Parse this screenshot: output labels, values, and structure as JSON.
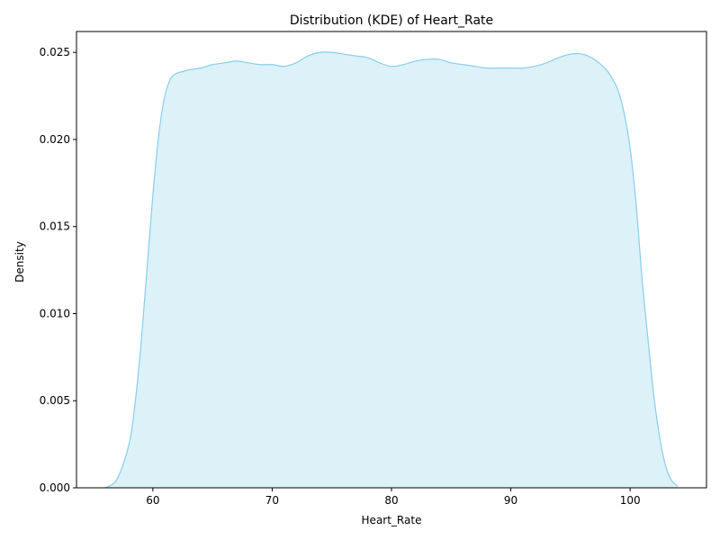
{
  "chart_data": {
    "type": "area",
    "title": "Distribution (KDE) of Heart_Rate",
    "xlabel": "Heart_Rate",
    "ylabel": "Density",
    "xlim": [
      53.6,
      106.4
    ],
    "ylim": [
      0.0,
      0.0262
    ],
    "xticks": [
      60,
      70,
      80,
      90,
      100
    ],
    "xtick_labels": [
      "60",
      "70",
      "80",
      "90",
      "100"
    ],
    "yticks": [
      0.0,
      0.005,
      0.01,
      0.015,
      0.02,
      0.025
    ],
    "ytick_labels": [
      "0.000",
      "0.005",
      "0.010",
      "0.015",
      "0.020",
      "0.025"
    ],
    "grid": false,
    "colors": {
      "line": "#87ceeb",
      "fill": "#ddf1f9"
    },
    "series": [
      {
        "x": [
          56,
          57,
          58,
          58.5,
          59,
          59.5,
          60,
          60.5,
          61,
          61.5,
          62,
          62.5,
          63,
          64,
          65,
          66,
          67,
          68,
          69,
          70,
          71,
          72,
          73,
          74,
          75,
          76,
          77,
          78,
          79,
          80,
          81,
          82,
          83,
          84,
          85,
          86,
          87,
          88,
          89,
          90,
          91,
          92,
          93,
          94,
          95,
          96,
          97,
          98,
          98.5,
          99,
          99.5,
          100,
          100.5,
          101,
          101.5,
          102,
          102.5,
          103,
          103.5,
          104
        ],
        "y": [
          0.0,
          0.0005,
          0.0025,
          0.0048,
          0.0082,
          0.0125,
          0.0168,
          0.0203,
          0.0225,
          0.0235,
          0.0238,
          0.0239,
          0.024,
          0.0241,
          0.0243,
          0.0244,
          0.0245,
          0.0244,
          0.0243,
          0.0243,
          0.0242,
          0.0244,
          0.0248,
          0.025,
          0.025,
          0.0249,
          0.0248,
          0.0247,
          0.0244,
          0.0242,
          0.0243,
          0.0245,
          0.0246,
          0.0246,
          0.0244,
          0.0243,
          0.0242,
          0.0241,
          0.0241,
          0.0241,
          0.0241,
          0.0242,
          0.0244,
          0.0247,
          0.0249,
          0.0249,
          0.0246,
          0.024,
          0.0235,
          0.0228,
          0.0215,
          0.0195,
          0.0163,
          0.012,
          0.0085,
          0.0052,
          0.0028,
          0.0012,
          0.0004,
          0.0001
        ]
      }
    ]
  }
}
